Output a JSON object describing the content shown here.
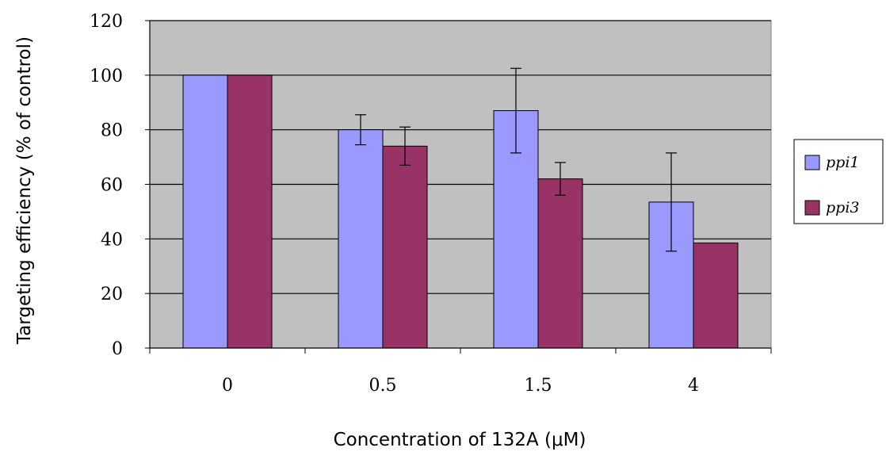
{
  "chart_data": {
    "type": "bar",
    "categories": [
      "0",
      "0.5",
      "1.5",
      "4"
    ],
    "series": [
      {
        "name": "ppi1",
        "color": "#9999ff",
        "values": [
          100,
          80,
          87,
          53.5
        ],
        "error": [
          0,
          5.5,
          15.5,
          18
        ]
      },
      {
        "name": "ppi3",
        "color": "#993366",
        "values": [
          100,
          74,
          62,
          38.5
        ],
        "error": [
          0,
          7,
          6,
          0
        ]
      }
    ],
    "xlabel": "Concentration of 132A (μM)",
    "ylabel": "Targeting efficiency (% of control)",
    "ylim": [
      0,
      120
    ],
    "yticks": [
      "0",
      "20",
      "40",
      "60",
      "80",
      "100",
      "120"
    ],
    "grid": true,
    "legend": "right",
    "plot_background": "#c0c0c0"
  }
}
